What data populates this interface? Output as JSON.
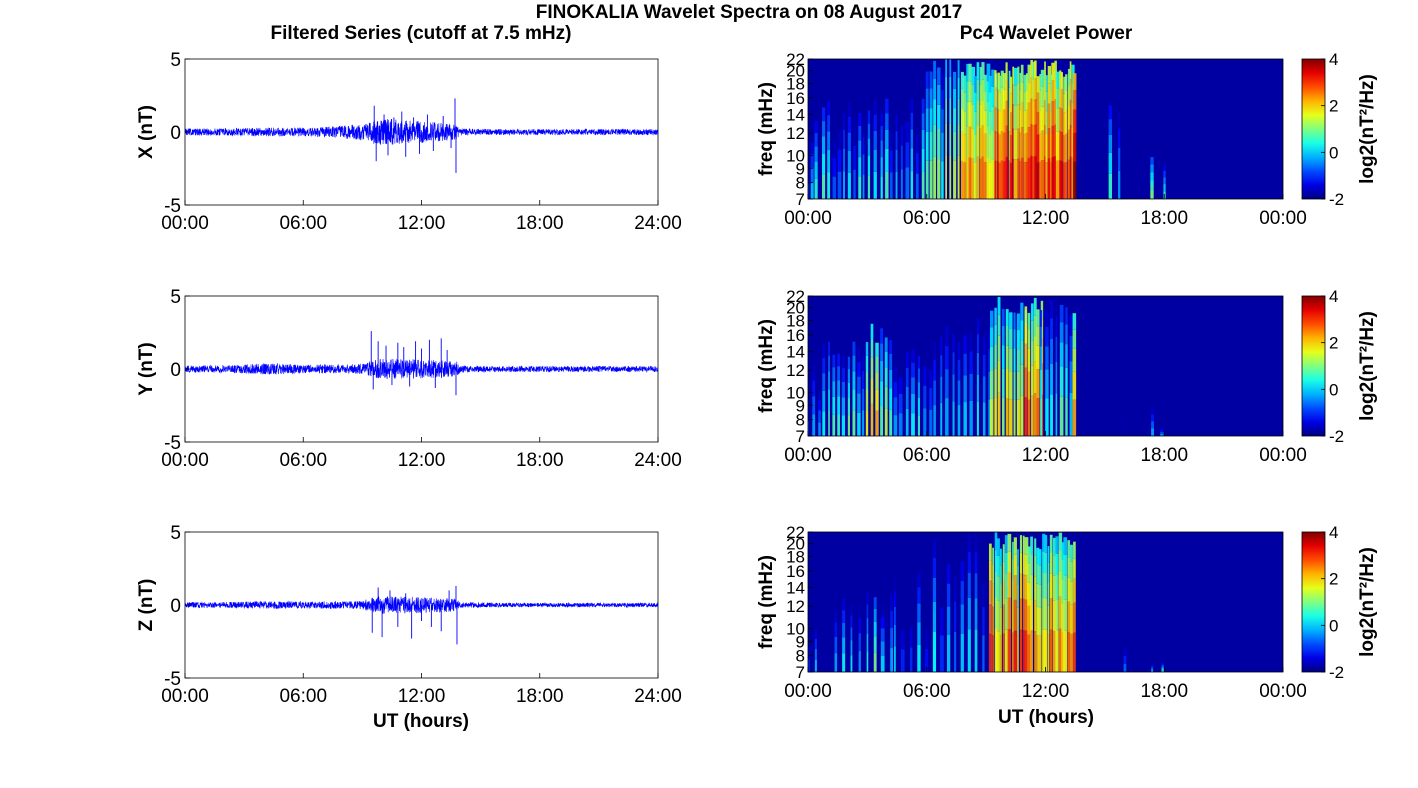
{
  "figure": {
    "title": "FINOKALIA Wavelet Spectra on 08 August 2017",
    "left_column_title": "Filtered Series (cutoff at 7.5 mHz)",
    "right_column_title": "Pc4 Wavelet Power",
    "xlabel": "UT (hours)"
  },
  "colors": {
    "trace": "#0000ff",
    "axes": "#000000",
    "spectrogram_background": "#00008f",
    "colormap": "jet"
  },
  "chart_data": [
    {
      "type": "line",
      "name": "X",
      "ylabel": "X (nT)",
      "ylim": [
        -5,
        5
      ],
      "yticks": [
        "5",
        "0",
        "-5"
      ],
      "xlim": [
        0,
        24
      ],
      "xticks": [
        "00:00",
        "06:00",
        "12:00",
        "18:00",
        "24:00"
      ],
      "grid": false,
      "envelope": {
        "x_hours": [
          0,
          2,
          4,
          6,
          7,
          8,
          9,
          9.5,
          10,
          10.5,
          11,
          11.5,
          12,
          12.5,
          13,
          13.5,
          13.8,
          14,
          16,
          18,
          20,
          22,
          24
        ],
        "amplitude_nT": [
          0.25,
          0.25,
          0.3,
          0.3,
          0.35,
          0.45,
          0.55,
          0.8,
          0.9,
          0.9,
          0.8,
          0.8,
          0.75,
          0.7,
          0.65,
          0.6,
          0.5,
          0.25,
          0.2,
          0.2,
          0.2,
          0.2,
          0.2
        ]
      },
      "spikes": [
        {
          "x": 9.6,
          "y": 1.8
        },
        {
          "x": 9.7,
          "y": -2.0
        },
        {
          "x": 10.1,
          "y": 1.2
        },
        {
          "x": 10.3,
          "y": -1.6
        },
        {
          "x": 10.6,
          "y": 1.0
        },
        {
          "x": 11.0,
          "y": 1.4
        },
        {
          "x": 11.2,
          "y": -1.7
        },
        {
          "x": 11.6,
          "y": 1.0
        },
        {
          "x": 11.9,
          "y": -1.5
        },
        {
          "x": 12.3,
          "y": 1.2
        },
        {
          "x": 12.6,
          "y": -1.3
        },
        {
          "x": 13.1,
          "y": 1.1
        },
        {
          "x": 13.5,
          "y": -1.1
        },
        {
          "x": 13.7,
          "y": 2.3
        },
        {
          "x": 13.75,
          "y": -2.8
        }
      ]
    },
    {
      "type": "line",
      "name": "Y",
      "ylabel": "Y (nT)",
      "ylim": [
        -5,
        5
      ],
      "yticks": [
        "5",
        "0",
        "-5"
      ],
      "xlim": [
        0,
        24
      ],
      "xticks": [
        "00:00",
        "06:00",
        "12:00",
        "18:00",
        "24:00"
      ],
      "grid": false,
      "envelope": {
        "x_hours": [
          0,
          2,
          3.5,
          4,
          6,
          8,
          9,
          9.5,
          10,
          11,
          12,
          13,
          13.8,
          14,
          16,
          18,
          20,
          22,
          24
        ],
        "amplitude_nT": [
          0.25,
          0.25,
          0.35,
          0.4,
          0.3,
          0.3,
          0.35,
          0.6,
          0.7,
          0.7,
          0.65,
          0.6,
          0.5,
          0.25,
          0.2,
          0.2,
          0.2,
          0.2,
          0.2
        ]
      },
      "spikes": [
        {
          "x": 9.45,
          "y": 2.6
        },
        {
          "x": 9.55,
          "y": -1.4
        },
        {
          "x": 9.8,
          "y": 1.9
        },
        {
          "x": 10.2,
          "y": 1.6
        },
        {
          "x": 10.5,
          "y": -1.1
        },
        {
          "x": 10.8,
          "y": 1.8
        },
        {
          "x": 11.1,
          "y": 1.5
        },
        {
          "x": 11.4,
          "y": -1.2
        },
        {
          "x": 11.7,
          "y": 1.9
        },
        {
          "x": 12.0,
          "y": 1.4
        },
        {
          "x": 12.4,
          "y": 2.0
        },
        {
          "x": 12.7,
          "y": -1.3
        },
        {
          "x": 13.0,
          "y": 2.1
        },
        {
          "x": 13.3,
          "y": 1.3
        },
        {
          "x": 13.75,
          "y": -1.8
        }
      ]
    },
    {
      "type": "line",
      "name": "Z",
      "ylabel": "Z (nT)",
      "ylim": [
        -5,
        5
      ],
      "yticks": [
        "5",
        "0",
        "-5"
      ],
      "xlim": [
        0,
        24
      ],
      "xticks": [
        "00:00",
        "06:00",
        "12:00",
        "18:00",
        "24:00"
      ],
      "grid": false,
      "envelope": {
        "x_hours": [
          0,
          2,
          4,
          6,
          8,
          9,
          9.5,
          10,
          11,
          12,
          13,
          13.8,
          14,
          16,
          18,
          20,
          22,
          24
        ],
        "amplitude_nT": [
          0.2,
          0.2,
          0.25,
          0.25,
          0.25,
          0.3,
          0.5,
          0.6,
          0.6,
          0.55,
          0.5,
          0.45,
          0.2,
          0.15,
          0.15,
          0.15,
          0.15,
          0.15
        ]
      },
      "spikes": [
        {
          "x": 9.5,
          "y": -1.9
        },
        {
          "x": 9.8,
          "y": 1.2
        },
        {
          "x": 10.0,
          "y": -2.2
        },
        {
          "x": 10.4,
          "y": 1.0
        },
        {
          "x": 10.8,
          "y": -1.5
        },
        {
          "x": 11.2,
          "y": 0.8
        },
        {
          "x": 11.5,
          "y": -2.3
        },
        {
          "x": 12.0,
          "y": -1.1
        },
        {
          "x": 12.5,
          "y": -1.5
        },
        {
          "x": 13.0,
          "y": -1.8
        },
        {
          "x": 13.4,
          "y": 1.0
        },
        {
          "x": 13.75,
          "y": 1.3
        },
        {
          "x": 13.8,
          "y": -2.7
        }
      ]
    },
    {
      "type": "heatmap",
      "name": "X",
      "ylabel": "freq (mHz)",
      "yticks": [
        "7",
        "8",
        "9",
        "10",
        "12",
        "14",
        "16",
        "18",
        "20",
        "22"
      ],
      "ylim_mHz": [
        7,
        22
      ],
      "xlim": [
        0,
        24
      ],
      "xticks": [
        "00:00",
        "06:00",
        "12:00",
        "18:00",
        "00:00"
      ],
      "colorbar": {
        "label": "log2(nT²/Hz)",
        "range": [
          -2,
          4
        ],
        "ticks": [
          "4",
          "2",
          "0",
          "-2"
        ]
      },
      "background_log2": -1.8,
      "bursts": [
        {
          "t0": 0.0,
          "t1": 0.4,
          "count": 3,
          "peak": 0.6,
          "fmax": 14
        },
        {
          "t0": 0.8,
          "t1": 2.6,
          "count": 8,
          "peak": 0.8,
          "fmax": 17
        },
        {
          "t0": 2.8,
          "t1": 4.0,
          "count": 5,
          "peak": 1.2,
          "fmax": 16
        },
        {
          "t0": 4.2,
          "t1": 5.8,
          "count": 7,
          "peak": 0.8,
          "fmax": 18
        },
        {
          "t0": 6.0,
          "t1": 7.8,
          "count": 10,
          "peak": 1.8,
          "fmax": 22
        },
        {
          "t0": 7.8,
          "t1": 9.5,
          "count": 14,
          "peak": 3.0,
          "fmax": 22
        },
        {
          "t0": 9.5,
          "t1": 13.4,
          "count": 36,
          "peak": 3.6,
          "fmax": 22
        },
        {
          "t0": 13.4,
          "t1": 13.5,
          "count": 1,
          "peak": 4.0,
          "fmax": 22
        },
        {
          "t0": 15.3,
          "t1": 15.7,
          "count": 2,
          "peak": 0.6,
          "fmax": 18
        },
        {
          "t0": 17.4,
          "t1": 18.0,
          "count": 2,
          "peak": 1.0,
          "fmax": 10
        }
      ]
    },
    {
      "type": "heatmap",
      "name": "Y",
      "ylabel": "freq (mHz)",
      "yticks": [
        "7",
        "8",
        "9",
        "10",
        "12",
        "14",
        "16",
        "18",
        "20",
        "22"
      ],
      "ylim_mHz": [
        7,
        22
      ],
      "xlim": [
        0,
        24
      ],
      "xticks": [
        "00:00",
        "06:00",
        "12:00",
        "18:00",
        "00:00"
      ],
      "colorbar": {
        "label": "log2(nT²/Hz)",
        "range": [
          -2,
          4
        ],
        "ticks": [
          "4",
          "2",
          "0",
          "-2"
        ]
      },
      "background_log2": -1.8,
      "bursts": [
        {
          "t0": 0.0,
          "t1": 0.6,
          "count": 3,
          "peak": 0.4,
          "fmax": 14
        },
        {
          "t0": 0.8,
          "t1": 2.8,
          "count": 9,
          "peak": 1.0,
          "fmax": 16
        },
        {
          "t0": 3.0,
          "t1": 4.2,
          "count": 6,
          "peak": 2.2,
          "fmax": 18
        },
        {
          "t0": 4.4,
          "t1": 6.2,
          "count": 7,
          "peak": 0.8,
          "fmax": 16
        },
        {
          "t0": 6.4,
          "t1": 9.2,
          "count": 10,
          "peak": 0.8,
          "fmax": 20
        },
        {
          "t0": 9.3,
          "t1": 11.0,
          "count": 10,
          "peak": 2.6,
          "fmax": 22
        },
        {
          "t0": 11.0,
          "t1": 11.8,
          "count": 6,
          "peak": 3.2,
          "fmax": 22
        },
        {
          "t0": 11.8,
          "t1": 13.3,
          "count": 7,
          "peak": 1.2,
          "fmax": 22
        },
        {
          "t0": 13.4,
          "t1": 13.5,
          "count": 1,
          "peak": 3.8,
          "fmax": 22
        },
        {
          "t0": 15.9,
          "t1": 16.1,
          "count": 1,
          "peak": -0.2,
          "fmax": 14
        },
        {
          "t0": 17.4,
          "t1": 17.9,
          "count": 2,
          "peak": 0.8,
          "fmax": 10
        }
      ]
    },
    {
      "type": "heatmap",
      "name": "Z",
      "ylabel": "freq (mHz)",
      "yticks": [
        "7",
        "8",
        "9",
        "10",
        "12",
        "14",
        "16",
        "18",
        "20",
        "22"
      ],
      "ylim_mHz": [
        7,
        22
      ],
      "xlim": [
        0,
        24
      ],
      "xticks": [
        "00:00",
        "06:00",
        "12:00",
        "18:00",
        "00:00"
      ],
      "colorbar": {
        "label": "log2(nT²/Hz)",
        "range": [
          -2,
          4
        ],
        "ticks": [
          "4",
          "2",
          "0",
          "-2"
        ]
      },
      "background_log2": -1.8,
      "bursts": [
        {
          "t0": 0.0,
          "t1": 0.4,
          "count": 2,
          "peak": 0.4,
          "fmax": 12
        },
        {
          "t0": 1.4,
          "t1": 4.2,
          "count": 8,
          "peak": 1.2,
          "fmax": 15
        },
        {
          "t0": 4.4,
          "t1": 6.4,
          "count": 6,
          "peak": 0.4,
          "fmax": 16
        },
        {
          "t0": 6.4,
          "t1": 9.2,
          "count": 9,
          "peak": 0.6,
          "fmax": 22
        },
        {
          "t0": 9.2,
          "t1": 13.3,
          "count": 30,
          "peak": 3.2,
          "fmax": 22
        },
        {
          "t0": 13.4,
          "t1": 13.5,
          "count": 1,
          "peak": 3.0,
          "fmax": 22
        },
        {
          "t0": 15.9,
          "t1": 16.1,
          "count": 1,
          "peak": -0.2,
          "fmax": 12
        },
        {
          "t0": 17.4,
          "t1": 17.9,
          "count": 2,
          "peak": 0.8,
          "fmax": 10
        }
      ]
    }
  ]
}
